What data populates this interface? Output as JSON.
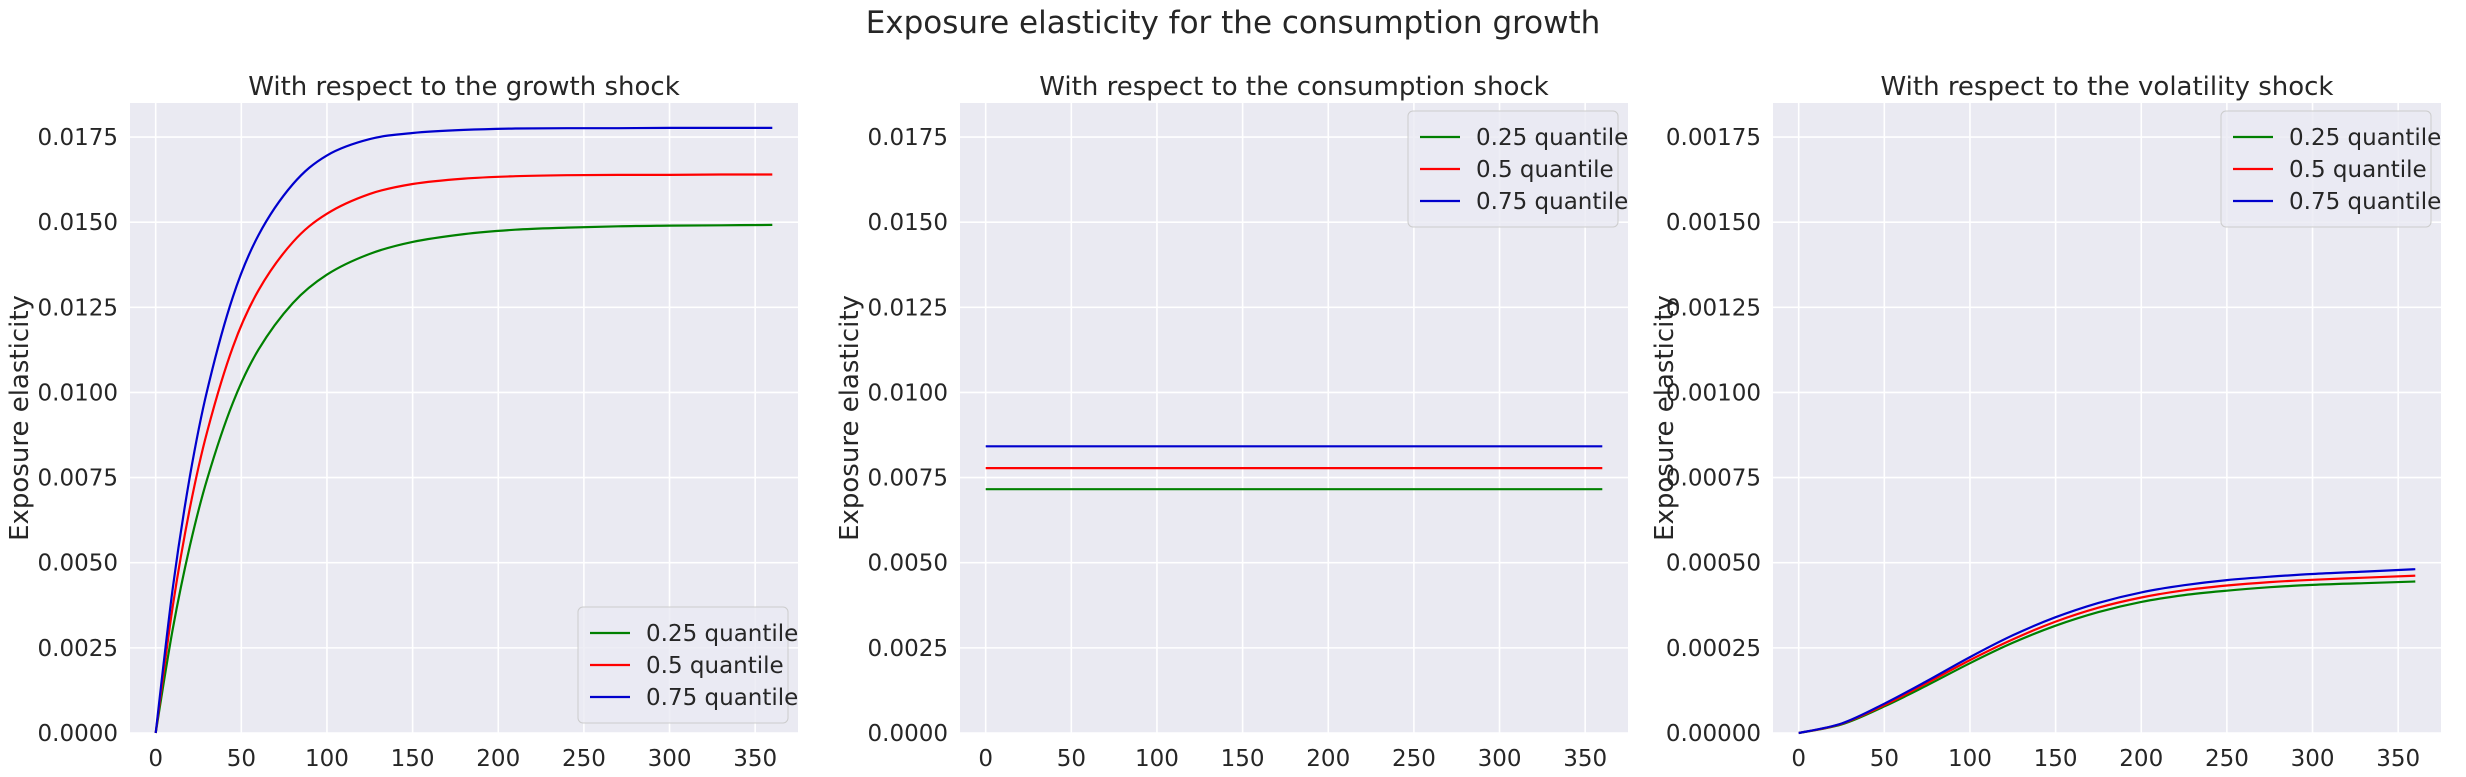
{
  "figure_title": "Exposure elasticity for the consumption growth",
  "legend_labels": [
    "0.25 quantile",
    "0.5 quantile",
    "0.75 quantile"
  ],
  "series_colors": [
    "#008000",
    "#ff0000",
    "#0000cd"
  ],
  "chart_data": [
    {
      "type": "line",
      "title": "With respect to the growth shock",
      "xlabel": "",
      "ylabel": "Exposure elasticity",
      "xlim": [
        -15,
        375
      ],
      "ylim": [
        0,
        0.0185
      ],
      "xticks": [
        0,
        50,
        100,
        150,
        200,
        250,
        300,
        350
      ],
      "xtick_labels": [
        "0",
        "50",
        "100",
        "150",
        "200",
        "250",
        "300",
        "350"
      ],
      "yticks": [
        0,
        0.0025,
        0.005,
        0.0075,
        0.01,
        0.0125,
        0.015,
        0.0175
      ],
      "ytick_labels": [
        "0.0000",
        "0.0025",
        "0.0050",
        "0.0075",
        "0.0100",
        "0.0125",
        "0.0150",
        "0.0175"
      ],
      "grid": true,
      "legend": "lower-right",
      "x": [
        0,
        10,
        20,
        30,
        45,
        60,
        80,
        100,
        125,
        150,
        180,
        210,
        240,
        270,
        300,
        330,
        360
      ],
      "series": [
        {
          "name": "0.25 quantile",
          "color": "#008000",
          "values": [
            0.0,
            0.00306,
            0.0055,
            0.00745,
            0.00969,
            0.01126,
            0.01262,
            0.01346,
            0.01407,
            0.01442,
            0.01465,
            0.01478,
            0.01484,
            0.01488,
            0.0149,
            0.01491,
            0.01492
          ]
        },
        {
          "name": "0.5 quantile",
          "color": "#ff0000",
          "values": [
            0.0,
            0.00373,
            0.00661,
            0.00884,
            0.01133,
            0.013,
            0.01441,
            0.01525,
            0.01583,
            0.01612,
            0.01628,
            0.01635,
            0.01638,
            0.01639,
            0.01639,
            0.0164,
            0.0164
          ]
        },
        {
          "name": "0.75 quantile",
          "color": "#0000cd",
          "values": [
            0.0,
            0.00426,
            0.00754,
            0.01005,
            0.0128,
            0.01462,
            0.01611,
            0.01696,
            0.01744,
            0.01762,
            0.01771,
            0.01775,
            0.01776,
            0.01776,
            0.01777,
            0.01777,
            0.01777
          ]
        }
      ]
    },
    {
      "type": "line",
      "title": "With respect to the consumption shock",
      "xlabel": "",
      "ylabel": "Exposure elasticity",
      "xlim": [
        -15,
        375
      ],
      "ylim": [
        0,
        0.0185
      ],
      "xticks": [
        0,
        50,
        100,
        150,
        200,
        250,
        300,
        350
      ],
      "xtick_labels": [
        "0",
        "50",
        "100",
        "150",
        "200",
        "250",
        "300",
        "350"
      ],
      "yticks": [
        0,
        0.0025,
        0.005,
        0.0075,
        0.01,
        0.0125,
        0.015,
        0.0175
      ],
      "ytick_labels": [
        "0.0000",
        "0.0025",
        "0.0050",
        "0.0075",
        "0.0100",
        "0.0125",
        "0.0150",
        "0.0175"
      ],
      "grid": true,
      "legend": "upper-right",
      "x": [
        0,
        360
      ],
      "series": [
        {
          "name": "0.25 quantile",
          "color": "#008000",
          "values": [
            0.00716,
            0.00716
          ]
        },
        {
          "name": "0.5 quantile",
          "color": "#ff0000",
          "values": [
            0.00778,
            0.00778
          ]
        },
        {
          "name": "0.75 quantile",
          "color": "#0000cd",
          "values": [
            0.00842,
            0.00842
          ]
        }
      ]
    },
    {
      "type": "line",
      "title": "With respect to the volatility shock",
      "xlabel": "",
      "ylabel": "Exposure elasticity",
      "xlim": [
        -15,
        375
      ],
      "ylim": [
        0,
        0.00185
      ],
      "xticks": [
        0,
        50,
        100,
        150,
        200,
        250,
        300,
        350
      ],
      "xtick_labels": [
        "0",
        "50",
        "100",
        "150",
        "200",
        "250",
        "300",
        "350"
      ],
      "yticks": [
        0,
        0.00025,
        0.0005,
        0.00075,
        0.001,
        0.00125,
        0.0015,
        0.00175
      ],
      "ytick_labels": [
        "0.00000",
        "0.00025",
        "0.00050",
        "0.00075",
        "0.00100",
        "0.00125",
        "0.00150",
        "0.00175"
      ],
      "grid": true,
      "legend": "upper-right",
      "x": [
        0,
        25,
        50,
        75,
        100,
        125,
        150,
        175,
        200,
        225,
        250,
        275,
        300,
        330,
        360
      ],
      "series": [
        {
          "name": "0.25 quantile",
          "color": "#008000",
          "values": [
            0.0,
            2.5e-05,
            7.8e-05,
            0.00014,
            0.000205,
            0.000265,
            0.000315,
            0.000355,
            0.000385,
            0.000405,
            0.000418,
            0.000428,
            0.000435,
            0.00044,
            0.000445
          ]
        },
        {
          "name": "0.5 quantile",
          "color": "#ff0000",
          "values": [
            0.0,
            2.7e-05,
            8.2e-05,
            0.000147,
            0.000214,
            0.000275,
            0.000327,
            0.000368,
            0.000398,
            0.000419,
            0.000433,
            0.000443,
            0.00045,
            0.000456,
            0.000462
          ]
        },
        {
          "name": "0.75 quantile",
          "color": "#0000cd",
          "values": [
            0.0,
            2.8e-05,
            8.6e-05,
            0.000153,
            0.000223,
            0.000287,
            0.00034,
            0.000382,
            0.000413,
            0.000434,
            0.000449,
            0.000459,
            0.000467,
            0.000474,
            0.000481
          ]
        }
      ]
    }
  ]
}
